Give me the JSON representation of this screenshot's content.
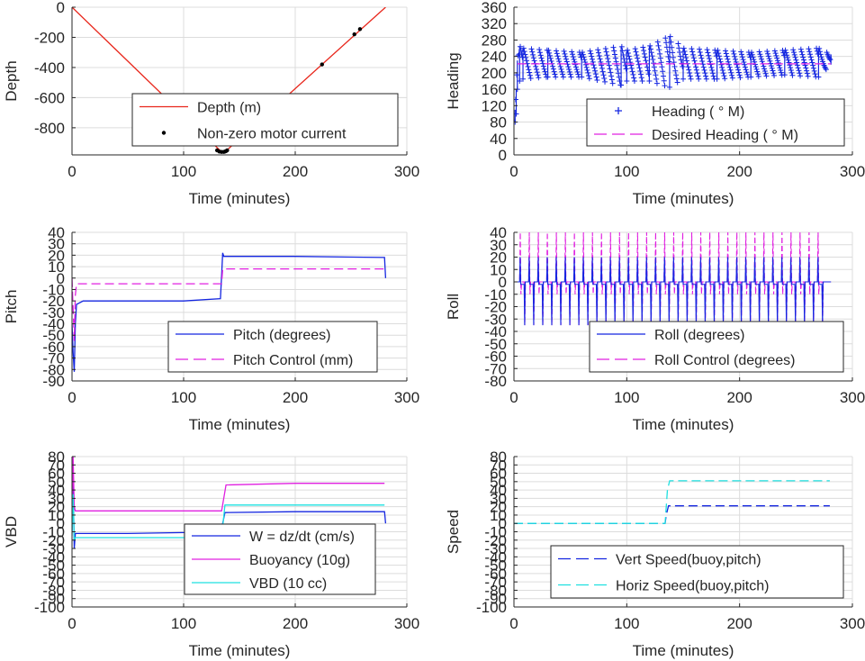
{
  "chart_data": [
    {
      "id": "depth",
      "type": "line",
      "ylabel": "Depth",
      "xlabel": "Time (minutes)",
      "xlim": [
        0,
        300
      ],
      "ylim": [
        -980,
        0
      ],
      "xticks": [
        0,
        100,
        200,
        300
      ],
      "yticks": [
        -800,
        -600,
        -400,
        -200,
        0
      ],
      "grid": true,
      "legend": {
        "placement": "lower-center",
        "entries": [
          "Depth (m)",
          "Non-zero motor current"
        ]
      },
      "series": [
        {
          "name": "Depth (m)",
          "style": "solid",
          "color": "#e8261b",
          "x": [
            0,
            134,
            137,
            281
          ],
          "y": [
            0,
            -960,
            -960,
            0
          ]
        },
        {
          "name": "Non-zero motor current",
          "style": "dots",
          "color": "#000000",
          "x": [
            130,
            132,
            134,
            136,
            137,
            138,
            139,
            224,
            253,
            258
          ],
          "y": [
            -950,
            -958,
            -960,
            -960,
            -958,
            -955,
            -950,
            -380,
            -180,
            -145
          ]
        }
      ]
    },
    {
      "id": "heading",
      "type": "scatter",
      "ylabel": "Heading",
      "xlabel": "Time (minutes)",
      "xlim": [
        0,
        300
      ],
      "ylim": [
        0,
        360
      ],
      "xticks": [
        0,
        100,
        200,
        300
      ],
      "yticks": [
        0,
        40,
        80,
        120,
        160,
        200,
        240,
        280,
        320,
        360
      ],
      "grid": true,
      "legend": {
        "placement": "lower-right",
        "entries": [
          "Heading (   ° M)",
          "Desired Heading (     ° M)"
        ]
      },
      "series": [
        {
          "name": "Heading (   ° M)",
          "style": "plus",
          "color": "#1426e0",
          "x": [
            1,
            2,
            3,
            5,
            8,
            30,
            60,
            95,
            100,
            120,
            138,
            150,
            180,
            210,
            240,
            270,
            281
          ],
          "y": [
            95,
            130,
            200,
            240,
            225,
            230,
            220,
            240,
            215,
            225,
            275,
            215,
            230,
            225,
            230,
            228,
            235
          ],
          "y_low": [
            80,
            100,
            160,
            180,
            185,
            190,
            190,
            170,
            180,
            180,
            165,
            185,
            185,
            190,
            195,
            190,
            220
          ],
          "y_high": [
            110,
            160,
            230,
            265,
            260,
            255,
            250,
            265,
            255,
            265,
            290,
            260,
            255,
            250,
            255,
            260,
            245
          ]
        },
        {
          "name": "Desired Heading (     ° M)",
          "style": "dashed",
          "color": "#e020e0",
          "x": [
            3,
            281
          ],
          "y": [
            222,
            222
          ]
        }
      ]
    },
    {
      "id": "pitch",
      "type": "line",
      "ylabel": "Pitch",
      "xlabel": "Time (minutes)",
      "xlim": [
        0,
        300
      ],
      "ylim": [
        -90,
        40
      ],
      "xticks": [
        0,
        100,
        200,
        300
      ],
      "yticks": [
        -90,
        -80,
        -70,
        -60,
        -50,
        -40,
        -30,
        -20,
        -10,
        0,
        10,
        20,
        30,
        40
      ],
      "grid": true,
      "legend": {
        "placement": "lower-right",
        "entries": [
          "Pitch (degrees)",
          "Pitch Control (mm)"
        ]
      },
      "series": [
        {
          "name": "Pitch (degrees)",
          "style": "solid",
          "color": "#1426e0",
          "x": [
            0,
            1,
            2,
            3,
            4,
            10,
            50,
            100,
            133,
            134,
            135,
            136,
            138,
            200,
            280,
            281
          ],
          "y": [
            -40,
            -65,
            -82,
            -40,
            -23,
            -20,
            -20,
            -20,
            -18,
            2,
            22,
            19,
            19,
            19,
            18,
            0
          ]
        },
        {
          "name": "Pitch Control (mm)",
          "style": "dashed",
          "color": "#e020e0",
          "x": [
            0,
            2,
            3,
            4,
            134,
            135,
            280
          ],
          "y": [
            0,
            -55,
            -15,
            -5,
            -5,
            8,
            8
          ]
        }
      ]
    },
    {
      "id": "roll",
      "type": "line",
      "ylabel": "Roll",
      "xlabel": "Time (minutes)",
      "xlim": [
        0,
        300
      ],
      "ylim": [
        -80,
        40
      ],
      "xticks": [
        0,
        100,
        200,
        300
      ],
      "yticks": [
        -80,
        -70,
        -60,
        -50,
        -40,
        -30,
        -20,
        -10,
        0,
        10,
        20,
        30,
        40
      ],
      "grid": true,
      "legend": {
        "placement": "lower-right",
        "entries": [
          "Roll (degrees)",
          "Roll Control (degrees)"
        ]
      },
      "oscillation": {
        "start": 5,
        "end": 270,
        "period": 8,
        "roll_amp": [
          -35,
          20
        ],
        "control_amp": [
          -35,
          40
        ]
      },
      "series": [
        {
          "name": "Roll (degrees)",
          "style": "solid",
          "color": "#1426e0",
          "x": [
            0,
            281
          ],
          "y": [
            0,
            0
          ]
        },
        {
          "name": "Roll Control (degrees)",
          "style": "dashed",
          "color": "#e020e0",
          "x": [
            0,
            281
          ],
          "y": [
            0,
            0
          ]
        }
      ]
    },
    {
      "id": "vbd",
      "type": "line",
      "ylabel": "VBD",
      "xlabel": "Time (minutes)",
      "xlim": [
        0,
        300
      ],
      "ylim": [
        -100,
        80
      ],
      "xticks": [
        0,
        100,
        200,
        300
      ],
      "yticks": [
        -100,
        -90,
        -80,
        -70,
        -60,
        -50,
        -40,
        -30,
        -20,
        -10,
        0,
        10,
        20,
        30,
        40,
        50,
        60,
        70,
        80
      ],
      "grid": true,
      "legend": {
        "placement": "lower-right",
        "entries": [
          "W = dz/dt (cm/s)",
          "Buoyancy (10g)",
          "VBD (10 cc)"
        ]
      },
      "series": [
        {
          "name": "W = dz/dt (cm/s)",
          "style": "solid",
          "color": "#1426e0",
          "x": [
            0,
            1,
            2,
            3,
            50,
            100,
            133,
            135,
            137,
            200,
            280,
            281
          ],
          "y": [
            -10,
            50,
            -30,
            -12,
            -12,
            -11,
            -10,
            0,
            13,
            14,
            14,
            0
          ]
        },
        {
          "name": "Buoyancy (10g)",
          "style": "solid",
          "color": "#e020e0",
          "x": [
            0,
            1,
            2,
            3,
            134,
            138,
            200,
            280
          ],
          "y": [
            10,
            80,
            20,
            15,
            15,
            46,
            48,
            48
          ]
        },
        {
          "name": "VBD (10 cc)",
          "style": "solid",
          "color": "#1fe0e0",
          "x": [
            0,
            1,
            2,
            3,
            134,
            137,
            280
          ],
          "y": [
            -15,
            35,
            -20,
            -17,
            -17,
            22,
            22
          ]
        }
      ]
    },
    {
      "id": "speed",
      "type": "line",
      "ylabel": "Speed",
      "xlabel": "Time (minutes)",
      "xlim": [
        0,
        300
      ],
      "ylim": [
        -100,
        80
      ],
      "xticks": [
        0,
        100,
        200,
        300
      ],
      "yticks": [
        -100,
        -90,
        -80,
        -70,
        -60,
        -50,
        -40,
        -30,
        -20,
        -10,
        0,
        10,
        20,
        30,
        40,
        50,
        60,
        70,
        80
      ],
      "grid": true,
      "legend": {
        "placement": "lower-right",
        "entries": [
          "Vert Speed(buoy,pitch)",
          "Horiz Speed(buoy,pitch)"
        ]
      },
      "series": [
        {
          "name": "Vert Speed(buoy,pitch)",
          "style": "dashed",
          "color": "#1426e0",
          "x": [
            0,
            134,
            135,
            137,
            280
          ],
          "y": [
            0,
            0,
            10,
            21,
            21
          ]
        },
        {
          "name": "Horiz Speed(buoy,pitch)",
          "style": "dashed",
          "color": "#1fe0e0",
          "x": [
            0,
            134,
            136,
            138,
            280
          ],
          "y": [
            0,
            0,
            40,
            51,
            51
          ]
        }
      ]
    }
  ]
}
